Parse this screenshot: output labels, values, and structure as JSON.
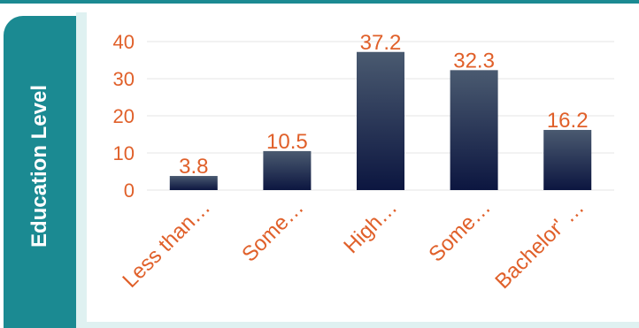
{
  "chart_data": {
    "type": "bar",
    "ylabel": "Education Level",
    "categories": [
      "Less than…",
      "Some…",
      "High…",
      "Some…",
      "Bachelor' …"
    ],
    "values": [
      3.8,
      10.5,
      37.2,
      32.3,
      16.2
    ],
    "data_labels": [
      "3.8",
      "10.5",
      "37.2",
      "32.3",
      "16.2"
    ],
    "yticks": [
      "0",
      "10",
      "20",
      "30",
      "40"
    ],
    "ylim": [
      0,
      45
    ],
    "grid": true
  },
  "colors": {
    "accent": "#1b8a92",
    "bar_top": "#4a5a70",
    "bar_bottom": "#0c1640",
    "label_text": "#e0602a",
    "gridline": "#e6e6e6"
  }
}
